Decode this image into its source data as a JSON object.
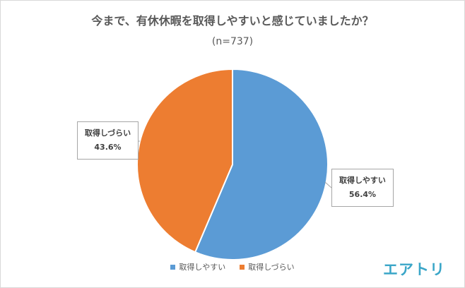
{
  "chart_data": {
    "type": "pie",
    "title": "今まで、有休休暇を取得しやすいと感じていましたか？",
    "subtitle": "(n=737)",
    "slices": [
      {
        "name": "取得しやすい",
        "value": 56.4,
        "label": "56.4%",
        "color": "#5b9bd5"
      },
      {
        "name": "取得しづらい",
        "value": 43.6,
        "label": "43.6%",
        "color": "#ed7d31"
      }
    ],
    "legend_position": "bottom"
  },
  "logo_text": "エアトリ",
  "colors": {
    "border": "#d9d9d9",
    "text": "#595959",
    "logo": "#3aa6c8"
  }
}
